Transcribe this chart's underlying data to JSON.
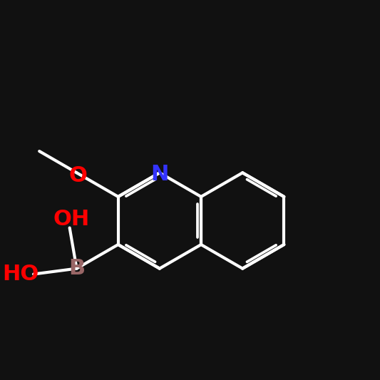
{
  "background_color": "#111111",
  "bond_color": "#ffffff",
  "atom_colors": {
    "B": "#996666",
    "O": "#FF0000",
    "N": "#3333FF",
    "C": "#ffffff"
  },
  "figsize": [
    5.33,
    5.33
  ],
  "dpi": 100,
  "lw": 3.0,
  "font_size": 22,
  "font_size_small": 20
}
